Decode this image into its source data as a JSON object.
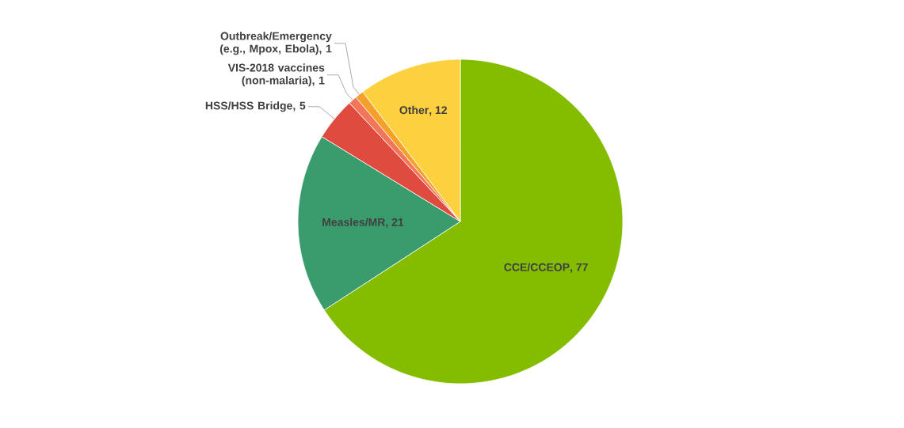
{
  "chart_data": {
    "type": "pie",
    "categories": [
      "CCE/CCEOP",
      "Measles/MR",
      "HSS/HSS Bridge",
      "VIS-2018 vaccines (non-malaria)",
      "Outbreak/Emergency (e.g., Mpox, Ebola)",
      "Other"
    ],
    "values": [
      77,
      21,
      5,
      1,
      1,
      12
    ],
    "colors": [
      "#84bd00",
      "#3a9b6d",
      "#e04b40",
      "#f4765a",
      "#f5a02a",
      "#fdd040"
    ],
    "value_labels": [
      ", 77",
      ", 21",
      ", 5",
      ", 1",
      ", 1",
      ", 12"
    ]
  }
}
